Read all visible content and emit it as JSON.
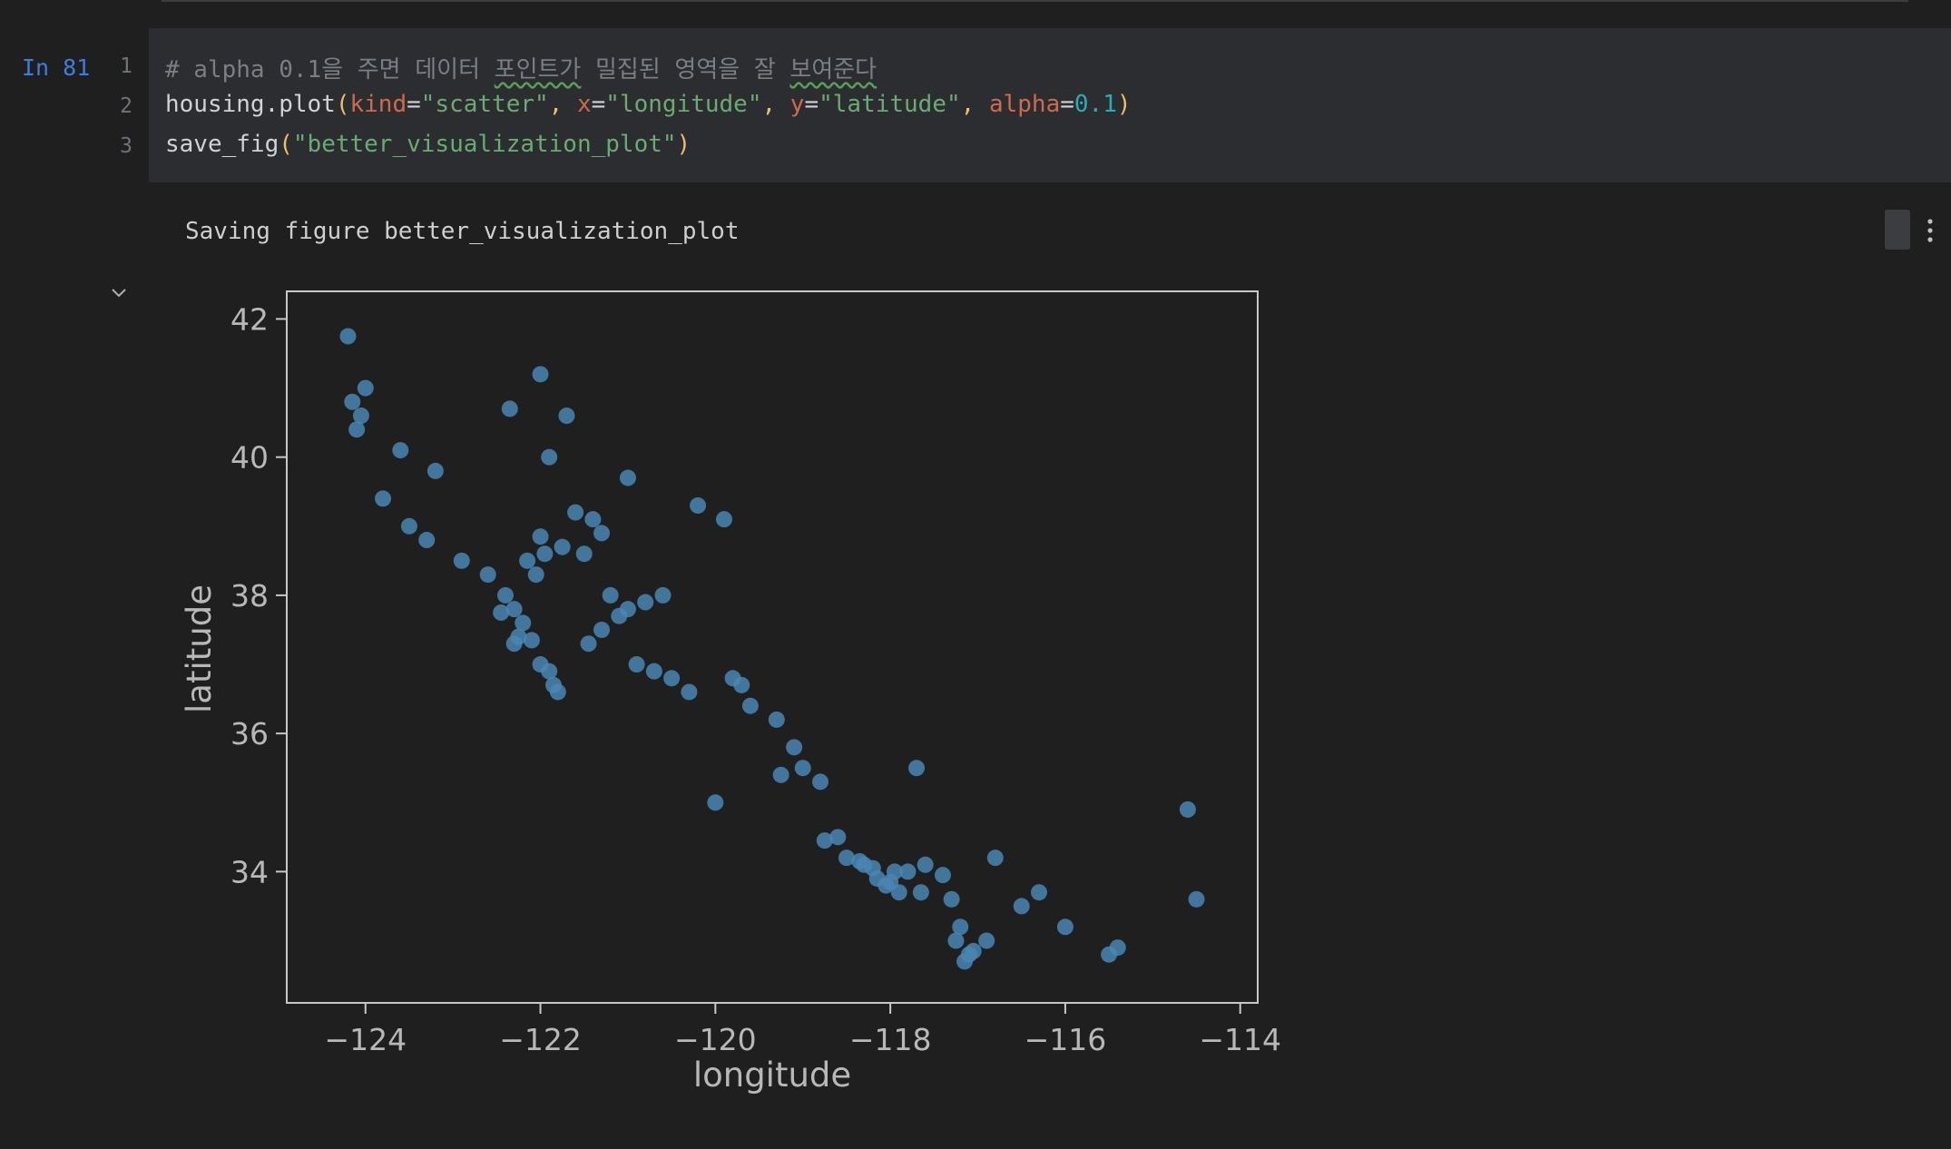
{
  "notebook": {
    "exec_label": "In 81",
    "cell": {
      "line_numbers": [
        "1",
        "2",
        "3"
      ],
      "code": {
        "comment_prefix": "# alpha 0.1을 주면 데이터 ",
        "comment_word1": "포인트가",
        "comment_mid": " 밀집된 영역을 잘 ",
        "comment_word2": "보여준다",
        "l2_obj": "housing.plot",
        "l2_open": "(",
        "l2_kw1": "kind",
        "l2_eq1": "=",
        "l2_val1": "\"scatter\"",
        "l2_comma1": ", ",
        "l2_kw2": "x",
        "l2_eq2": "=",
        "l2_val2": "\"longitude\"",
        "l2_comma2": ", ",
        "l2_kw3": "y",
        "l2_eq3": "=",
        "l2_val3": "\"latitude\"",
        "l2_comma3": ", ",
        "l2_kw4": "alpha",
        "l2_eq4": "=",
        "l2_val4": "0.1",
        "l2_close": ")",
        "l3_fn": "save_fig",
        "l3_open": "(",
        "l3_val": "\"better_visualization_plot\"",
        "l3_close": ")"
      }
    },
    "output": {
      "stdout": "Saving figure better_visualization_plot"
    },
    "icons": {
      "collapse": "chevron-down-icon",
      "more": "more-vertical-icon"
    }
  },
  "colors": {
    "point": "#4a86b3",
    "background": "#1f1f1f",
    "cell_background": "#2b2d30",
    "axes": "#c8c8c8",
    "exec_label": "#3d7de0"
  },
  "chart_data": {
    "type": "scatter",
    "xlabel": "longitude",
    "ylabel": "latitude",
    "xlim": [
      -124.9,
      -113.8
    ],
    "ylim": [
      32.1,
      42.4
    ],
    "xticks": [
      -124,
      -122,
      -120,
      -118,
      -116,
      -114
    ],
    "yticks": [
      34,
      36,
      38,
      40,
      42
    ],
    "xtick_labels": [
      "−124",
      "−122",
      "−120",
      "−118",
      "−116",
      "−114"
    ],
    "ytick_labels": [
      "34",
      "36",
      "38",
      "40",
      "42"
    ],
    "alpha": 0.1,
    "grid": false,
    "series": [
      {
        "x": [
          -124.2,
          -124.15,
          -124.05,
          -124.1,
          -123.8,
          -123.5,
          -123.3,
          -122.9,
          -122.6,
          -122.4,
          -122.3,
          -122.45,
          -122.2,
          -122.25,
          -122.3,
          -122.1,
          -122.0,
          -121.9,
          -121.8,
          -121.85,
          -122.05,
          -122.15,
          -121.95,
          -121.75,
          -122.0,
          -121.5,
          -121.4,
          -121.3,
          -121.6,
          -121.2,
          -121.0,
          -120.8,
          -120.6,
          -121.1,
          -121.3,
          -121.45,
          -120.9,
          -120.5,
          -120.3,
          -119.8,
          -119.7,
          -119.6,
          -119.3,
          -119.1,
          -119.0,
          -118.8,
          -118.6,
          -118.5,
          -118.3,
          -118.2,
          -118.15,
          -118.05,
          -118.0,
          -117.9,
          -117.8,
          -117.6,
          -117.4,
          -117.3,
          -117.2,
          -117.1,
          -117.15,
          -117.05,
          -116.9,
          -116.5,
          -116.3,
          -116.0,
          -115.5,
          -115.4,
          -114.6,
          -114.5,
          -123.2,
          -123.6,
          -124.0,
          -121.0,
          -120.2,
          -119.9,
          -117.7,
          -116.8,
          -120.0,
          -122.0,
          -121.7,
          -122.35,
          -121.9,
          -117.65,
          -118.35,
          -117.25,
          -117.95,
          -119.25,
          -118.75,
          -120.7
        ],
        "y": [
          41.75,
          40.8,
          40.6,
          40.4,
          39.4,
          39.0,
          38.8,
          38.5,
          38.3,
          38.0,
          37.8,
          37.75,
          37.6,
          37.4,
          37.3,
          37.35,
          37.0,
          36.9,
          36.6,
          36.7,
          38.3,
          38.5,
          38.6,
          38.7,
          38.85,
          38.6,
          39.1,
          38.9,
          39.2,
          38.0,
          37.8,
          37.9,
          38.0,
          37.7,
          37.5,
          37.3,
          37.0,
          36.8,
          36.6,
          36.8,
          36.7,
          36.4,
          36.2,
          35.8,
          35.5,
          35.3,
          34.5,
          34.2,
          34.1,
          34.05,
          33.9,
          33.8,
          33.85,
          33.7,
          34.0,
          34.1,
          33.95,
          33.6,
          33.2,
          32.8,
          32.7,
          32.85,
          33.0,
          33.5,
          33.7,
          33.2,
          32.8,
          32.9,
          34.9,
          33.6,
          39.8,
          40.1,
          41.0,
          39.7,
          39.3,
          39.1,
          35.5,
          34.2,
          35.0,
          41.2,
          40.6,
          40.7,
          40.0,
          33.7,
          34.15,
          33.0,
          34.0,
          35.4,
          34.45,
          36.9
        ]
      }
    ]
  }
}
